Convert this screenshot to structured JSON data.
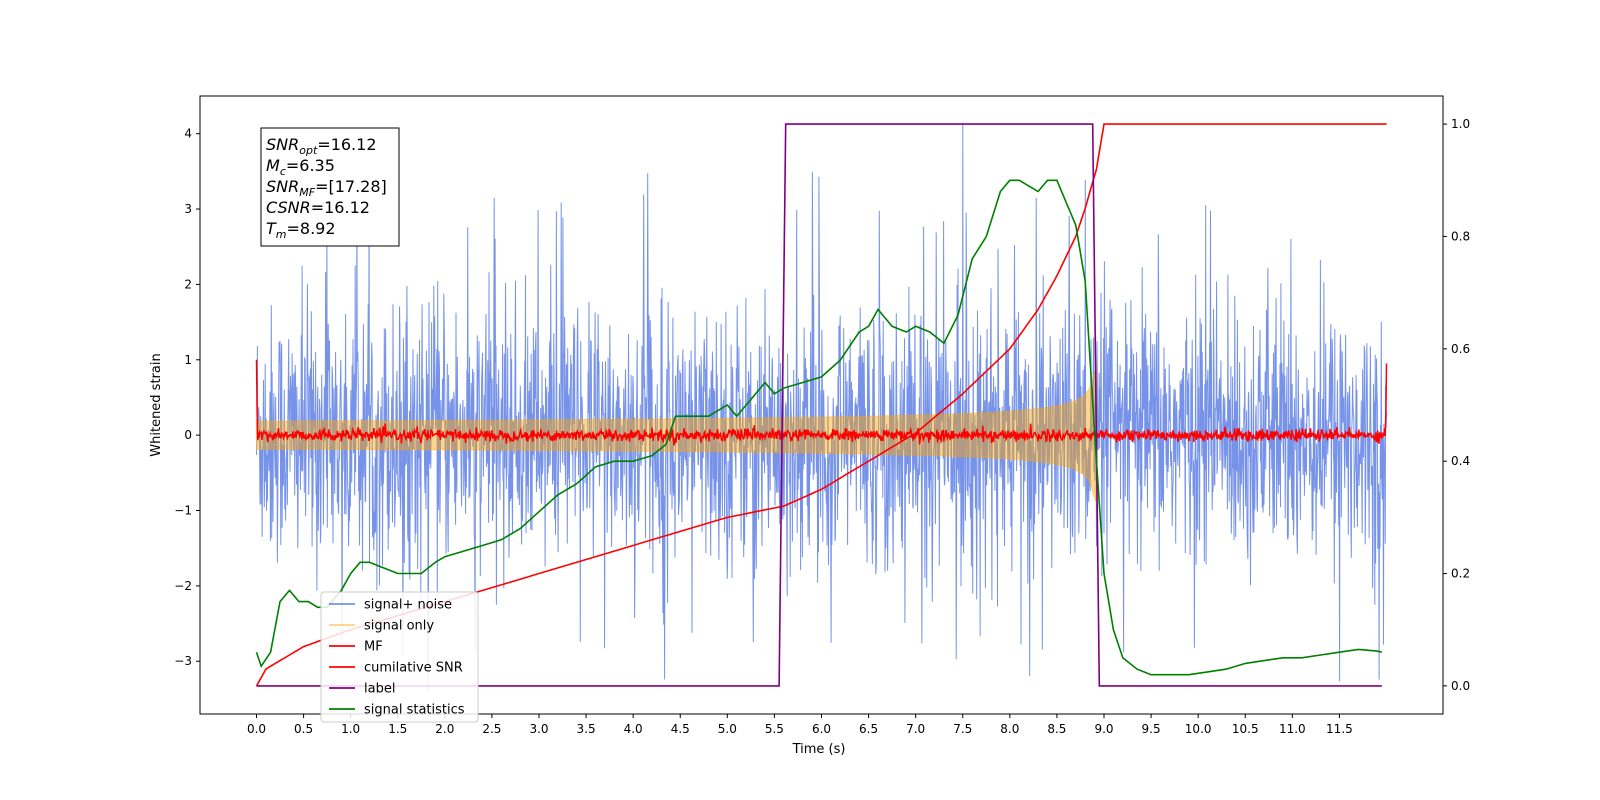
{
  "chart_data": {
    "type": "line",
    "title": "",
    "xlabel": "Time (s)",
    "ylabel": "Whitened strain",
    "ylabel_right": "",
    "xlim": [
      -0.6,
      12.6
    ],
    "ylim": [
      -3.7,
      4.5
    ],
    "ylim_right": [
      -0.05,
      1.05
    ],
    "x_ticks": [
      "0.0",
      "0.5",
      "1.0",
      "1.5",
      "2.0",
      "2.5",
      "3.0",
      "3.5",
      "4.0",
      "4.5",
      "5.0",
      "5.5",
      "6.0",
      "6.5",
      "7.0",
      "7.5",
      "8.0",
      "8.5",
      "9.0",
      "9.5",
      "10.0",
      "10.5",
      "11.0",
      "11.5"
    ],
    "y_ticks": [
      "−3",
      "−2",
      "−1",
      "0",
      "1",
      "2",
      "3",
      "4"
    ],
    "y_ticks_right": [
      "0.0",
      "0.2",
      "0.4",
      "0.6",
      "0.8",
      "1.0"
    ],
    "grid": false,
    "legend_position": "lower-left",
    "annotation": {
      "lines": [
        {
          "sym": "SNR",
          "sub": "opt",
          "value": "=16.12"
        },
        {
          "sym": "M",
          "sub": "c",
          "value": "=6.35"
        },
        {
          "sym": "SNR",
          "sub": "MF",
          "value": "=[17.28]"
        },
        {
          "sym": "CSNR",
          "sub": "",
          "value": "=16.12"
        },
        {
          "sym": "T",
          "sub": "m",
          "value": "=8.92"
        }
      ]
    },
    "series": [
      {
        "name": "signal+ noise",
        "color": "#4169e1",
        "axis": "left",
        "kind": "noise",
        "x_range": [
          0,
          12
        ],
        "amplitude_std": 0.85,
        "spike_max": 4.15
      },
      {
        "name": "signal only",
        "color": "#ffa500",
        "axis": "left",
        "kind": "chirp",
        "x_range": [
          0,
          8.92
        ],
        "start_amplitude": 0.05,
        "end_amplitude": 0.9
      },
      {
        "name": "MF",
        "color": "#ff0000",
        "axis": "left",
        "kind": "noise",
        "x_range": [
          0,
          12
        ],
        "amplitude_std": 0.04,
        "edge_values": [
          1.0,
          0.95
        ]
      },
      {
        "name": "cumilative SNR",
        "color": "#ff0000",
        "axis": "right",
        "x": [
          0.0,
          0.1,
          0.5,
          1.0,
          2.0,
          3.0,
          4.0,
          5.0,
          5.6,
          6.0,
          6.5,
          7.0,
          7.5,
          8.0,
          8.3,
          8.5,
          8.7,
          8.8,
          8.92,
          9.0,
          12.0
        ],
        "y": [
          0.0,
          0.03,
          0.07,
          0.1,
          0.15,
          0.2,
          0.25,
          0.3,
          0.32,
          0.35,
          0.4,
          0.45,
          0.52,
          0.6,
          0.67,
          0.73,
          0.8,
          0.85,
          0.92,
          1.0,
          1.0
        ]
      },
      {
        "name": "label",
        "color": "#800080",
        "axis": "right",
        "x": [
          0.0,
          5.55,
          5.62,
          8.88,
          8.95,
          11.95
        ],
        "y": [
          0,
          0,
          1,
          1,
          0,
          0
        ]
      },
      {
        "name": "signal statistics",
        "color": "#008000",
        "axis": "right",
        "x": [
          0.0,
          0.05,
          0.15,
          0.25,
          0.35,
          0.45,
          0.55,
          0.65,
          0.75,
          0.9,
          1.0,
          1.1,
          1.2,
          1.35,
          1.5,
          1.6,
          1.75,
          1.9,
          2.0,
          2.2,
          2.4,
          2.6,
          2.8,
          3.0,
          3.2,
          3.4,
          3.6,
          3.8,
          4.0,
          4.2,
          4.35,
          4.45,
          4.6,
          4.8,
          4.9,
          5.0,
          5.1,
          5.2,
          5.3,
          5.4,
          5.5,
          5.6,
          5.8,
          6.0,
          6.2,
          6.4,
          6.5,
          6.6,
          6.75,
          6.9,
          7.0,
          7.15,
          7.3,
          7.45,
          7.6,
          7.75,
          7.9,
          8.0,
          8.1,
          8.2,
          8.3,
          8.4,
          8.5,
          8.6,
          8.7,
          8.8,
          8.9,
          9.0,
          9.1,
          9.2,
          9.35,
          9.5,
          9.7,
          9.9,
          10.1,
          10.3,
          10.5,
          10.7,
          10.9,
          11.1,
          11.3,
          11.5,
          11.7,
          11.9,
          11.95
        ],
        "y": [
          0.06,
          0.035,
          0.06,
          0.15,
          0.17,
          0.15,
          0.15,
          0.14,
          0.14,
          0.17,
          0.2,
          0.22,
          0.22,
          0.21,
          0.2,
          0.2,
          0.2,
          0.22,
          0.23,
          0.24,
          0.25,
          0.26,
          0.28,
          0.31,
          0.34,
          0.36,
          0.39,
          0.4,
          0.4,
          0.41,
          0.43,
          0.48,
          0.48,
          0.48,
          0.49,
          0.5,
          0.48,
          0.5,
          0.52,
          0.54,
          0.52,
          0.53,
          0.54,
          0.55,
          0.58,
          0.63,
          0.64,
          0.67,
          0.64,
          0.63,
          0.64,
          0.63,
          0.61,
          0.66,
          0.76,
          0.8,
          0.88,
          0.9,
          0.9,
          0.89,
          0.88,
          0.9,
          0.9,
          0.86,
          0.82,
          0.72,
          0.45,
          0.2,
          0.1,
          0.05,
          0.03,
          0.02,
          0.02,
          0.02,
          0.025,
          0.03,
          0.04,
          0.045,
          0.05,
          0.05,
          0.055,
          0.06,
          0.065,
          0.062,
          0.06
        ]
      }
    ]
  }
}
